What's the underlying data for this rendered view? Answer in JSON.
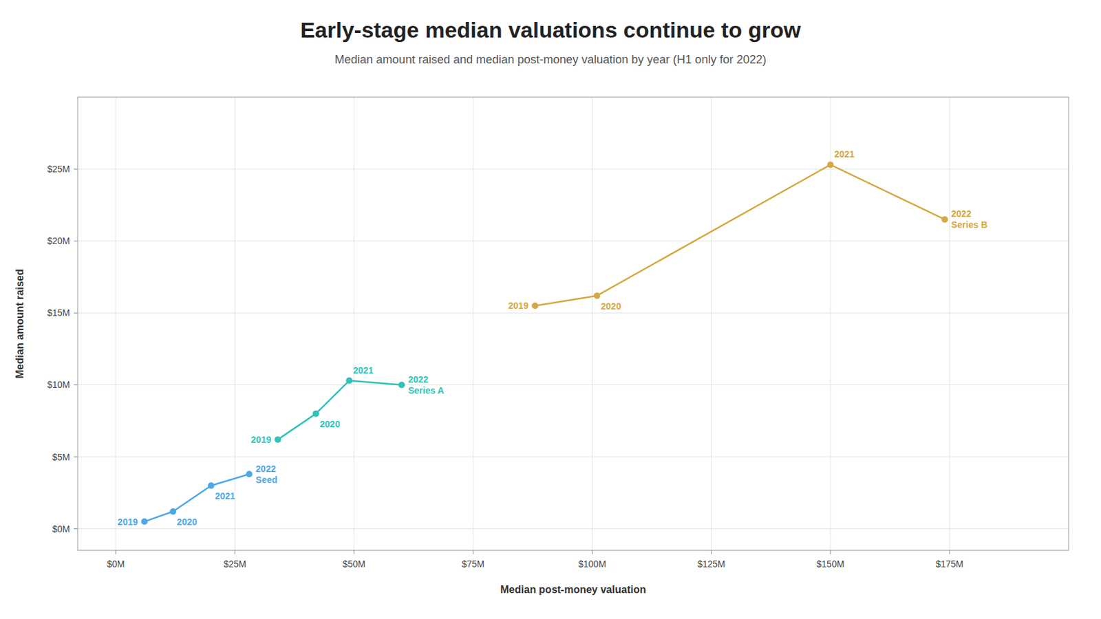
{
  "chart_data": {
    "type": "line",
    "title": "Early-stage median valuations continue to grow",
    "subtitle": "Median amount raised and median post-money valuation by year (H1 only for 2022)",
    "xlabel": "Median post-money valuation",
    "ylabel": "Median amount raised",
    "marker": "circle",
    "grid": true,
    "series": [
      {
        "name": "Seed",
        "color": "#4da8e8",
        "x": [
          6,
          12,
          20,
          28
        ],
        "values": [
          0.5,
          1.2,
          3.0,
          3.8
        ],
        "labels": [
          "2019",
          "2020",
          "2021",
          "2022\nSeed"
        ]
      },
      {
        "name": "Series A",
        "color": "#2ec4b6",
        "x": [
          34,
          42,
          49,
          60
        ],
        "values": [
          6.2,
          8.0,
          10.3,
          10.0
        ],
        "labels": [
          "2019",
          "2020",
          "2021",
          "2022\nSeries A"
        ]
      },
      {
        "name": "Series B",
        "color": "#d4a843",
        "x": [
          88,
          101,
          150,
          174
        ],
        "values": [
          15.5,
          16.2,
          25.3,
          21.5
        ],
        "labels": [
          "2019",
          "2020",
          "2021",
          "2022\nSeries B"
        ]
      }
    ],
    "xlim": [
      -8,
      200
    ],
    "ylim": [
      -1.5,
      30
    ],
    "xticks": [
      {
        "value": 0,
        "label": "$0M"
      },
      {
        "value": 25,
        "label": "$25M"
      },
      {
        "value": 50,
        "label": "$50M"
      },
      {
        "value": 75,
        "label": "$75M"
      },
      {
        "value": 100,
        "label": "$100M"
      },
      {
        "value": 125,
        "label": "$125M"
      },
      {
        "value": 150,
        "label": "$150M"
      },
      {
        "value": 175,
        "label": "$175M"
      }
    ],
    "yticks": [
      {
        "value": 0,
        "label": "$0M"
      },
      {
        "value": 5,
        "label": "$5M"
      },
      {
        "value": 10,
        "label": "$10M"
      },
      {
        "value": 15,
        "label": "$15M"
      },
      {
        "value": 20,
        "label": "$20M"
      },
      {
        "value": 25,
        "label": "$25M"
      }
    ]
  }
}
